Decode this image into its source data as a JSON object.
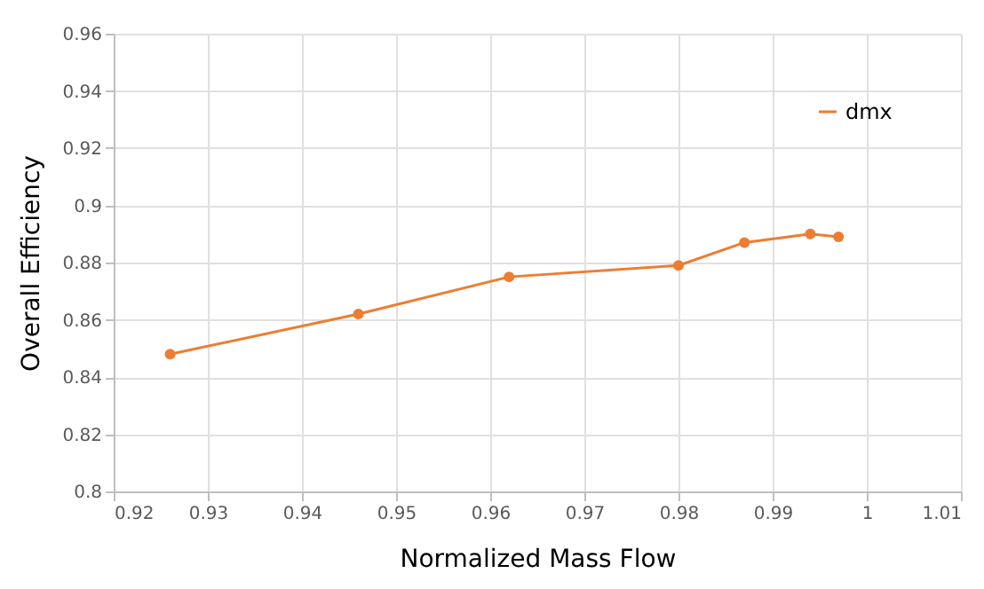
{
  "chart_data": {
    "type": "line",
    "xlabel": "Normalized Mass Flow",
    "ylabel": "Overall Efficiency",
    "x": [
      0.926,
      0.946,
      0.962,
      0.98,
      0.987,
      0.994,
      0.997
    ],
    "series": [
      {
        "name": "dmx",
        "color": "#ed7d31",
        "values": [
          0.848,
          0.862,
          0.875,
          0.879,
          0.887,
          0.89,
          0.889
        ]
      }
    ],
    "xlim": [
      0.92,
      1.01
    ],
    "xticks": [
      0.92,
      0.93,
      0.94,
      0.95,
      0.96,
      0.97,
      0.98,
      0.99,
      1,
      1.01
    ],
    "ylim": [
      0.8,
      0.96
    ],
    "yticks": [
      0.8,
      0.82,
      0.84,
      0.86,
      0.88,
      0.9,
      0.92,
      0.94,
      0.96
    ],
    "grid": true,
    "legend": "top right",
    "marker": "circle",
    "line_style": "solid"
  }
}
